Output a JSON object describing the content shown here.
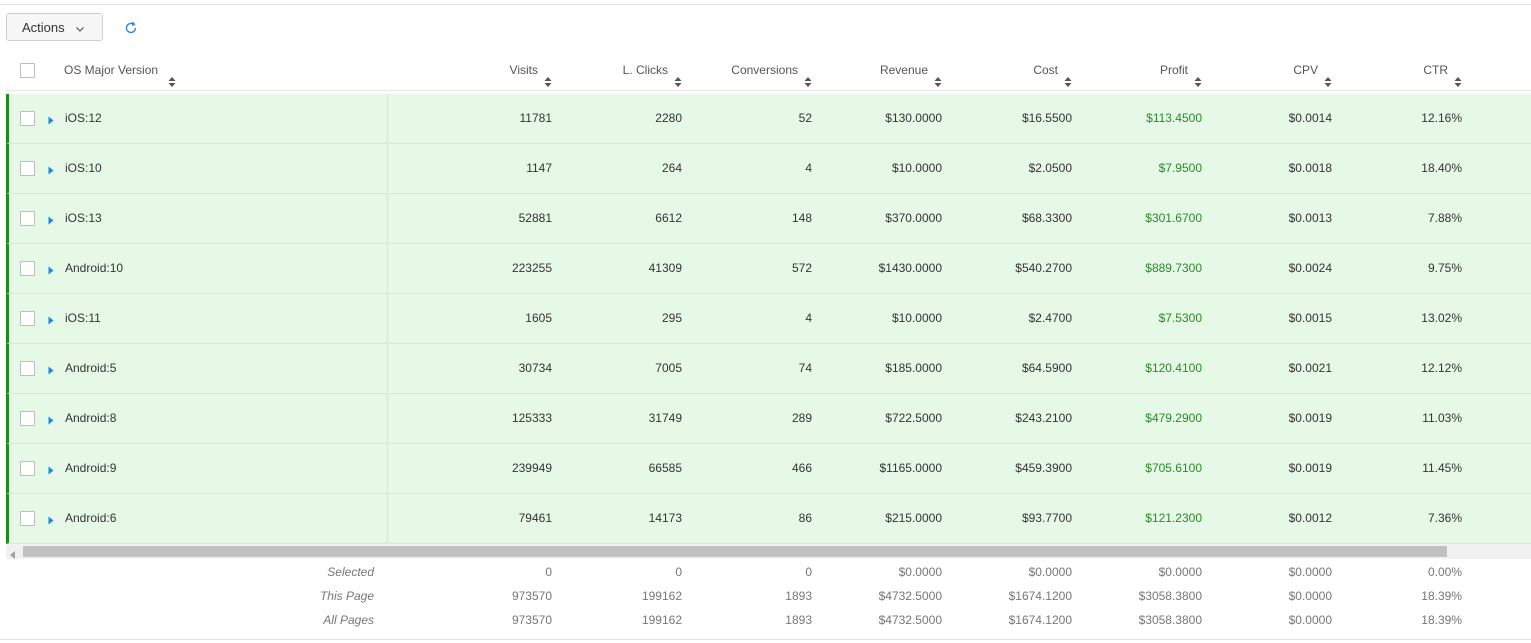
{
  "toolbar": {
    "actions_label": "Actions"
  },
  "columns": {
    "name": "OS Major Version",
    "visits": "Visits",
    "lclicks": "L. Clicks",
    "conversions": "Conversions",
    "revenue": "Revenue",
    "cost": "Cost",
    "profit": "Profit",
    "cpv": "CPV",
    "ctr": "CTR"
  },
  "rows": [
    {
      "name": "iOS:12",
      "visits": "11781",
      "lclicks": "2280",
      "conversions": "52",
      "revenue": "$130.0000",
      "cost": "$16.5500",
      "profit": "$113.4500",
      "cpv": "$0.0014",
      "ctr": "12.16%"
    },
    {
      "name": "iOS:10",
      "visits": "1147",
      "lclicks": "264",
      "conversions": "4",
      "revenue": "$10.0000",
      "cost": "$2.0500",
      "profit": "$7.9500",
      "cpv": "$0.0018",
      "ctr": "18.40%"
    },
    {
      "name": "iOS:13",
      "visits": "52881",
      "lclicks": "6612",
      "conversions": "148",
      "revenue": "$370.0000",
      "cost": "$68.3300",
      "profit": "$301.6700",
      "cpv": "$0.0013",
      "ctr": "7.88%"
    },
    {
      "name": "Android:10",
      "visits": "223255",
      "lclicks": "41309",
      "conversions": "572",
      "revenue": "$1430.0000",
      "cost": "$540.2700",
      "profit": "$889.7300",
      "cpv": "$0.0024",
      "ctr": "9.75%"
    },
    {
      "name": "iOS:11",
      "visits": "1605",
      "lclicks": "295",
      "conversions": "4",
      "revenue": "$10.0000",
      "cost": "$2.4700",
      "profit": "$7.5300",
      "cpv": "$0.0015",
      "ctr": "13.02%"
    },
    {
      "name": "Android:5",
      "visits": "30734",
      "lclicks": "7005",
      "conversions": "74",
      "revenue": "$185.0000",
      "cost": "$64.5900",
      "profit": "$120.4100",
      "cpv": "$0.0021",
      "ctr": "12.12%"
    },
    {
      "name": "Android:8",
      "visits": "125333",
      "lclicks": "31749",
      "conversions": "289",
      "revenue": "$722.5000",
      "cost": "$243.2100",
      "profit": "$479.2900",
      "cpv": "$0.0019",
      "ctr": "11.03%"
    },
    {
      "name": "Android:9",
      "visits": "239949",
      "lclicks": "66585",
      "conversions": "466",
      "revenue": "$1165.0000",
      "cost": "$459.3900",
      "profit": "$705.6100",
      "cpv": "$0.0019",
      "ctr": "11.45%"
    },
    {
      "name": "Android:6",
      "visits": "79461",
      "lclicks": "14173",
      "conversions": "86",
      "revenue": "$215.0000",
      "cost": "$93.7700",
      "profit": "$121.2300",
      "cpv": "$0.0012",
      "ctr": "7.36%"
    }
  ],
  "summary": [
    {
      "label": "Selected",
      "visits": "0",
      "lclicks": "0",
      "conversions": "0",
      "revenue": "$0.0000",
      "cost": "$0.0000",
      "profit": "$0.0000",
      "cpv": "$0.0000",
      "ctr": "0.00%"
    },
    {
      "label": "This Page",
      "visits": "973570",
      "lclicks": "199162",
      "conversions": "1893",
      "revenue": "$4732.5000",
      "cost": "$1674.1200",
      "profit": "$3058.3800",
      "cpv": "$0.0000",
      "ctr": "18.39%"
    },
    {
      "label": "All Pages",
      "visits": "973570",
      "lclicks": "199162",
      "conversions": "1893",
      "revenue": "$4732.5000",
      "cost": "$1674.1200",
      "profit": "$3058.3800",
      "cpv": "$0.0000",
      "ctr": "18.39%"
    }
  ],
  "colors": {
    "row_bg": "#e6f9e6",
    "row_accent": "#1f8a1f",
    "profit": "#2a8a2a",
    "expand_arrow": "#1e88e5",
    "refresh_icon": "#1e88e5"
  },
  "icons": {
    "actions": "chevron-down-icon",
    "refresh": "refresh-icon",
    "sort": "sort-icon",
    "expand": "caret-right-icon"
  }
}
